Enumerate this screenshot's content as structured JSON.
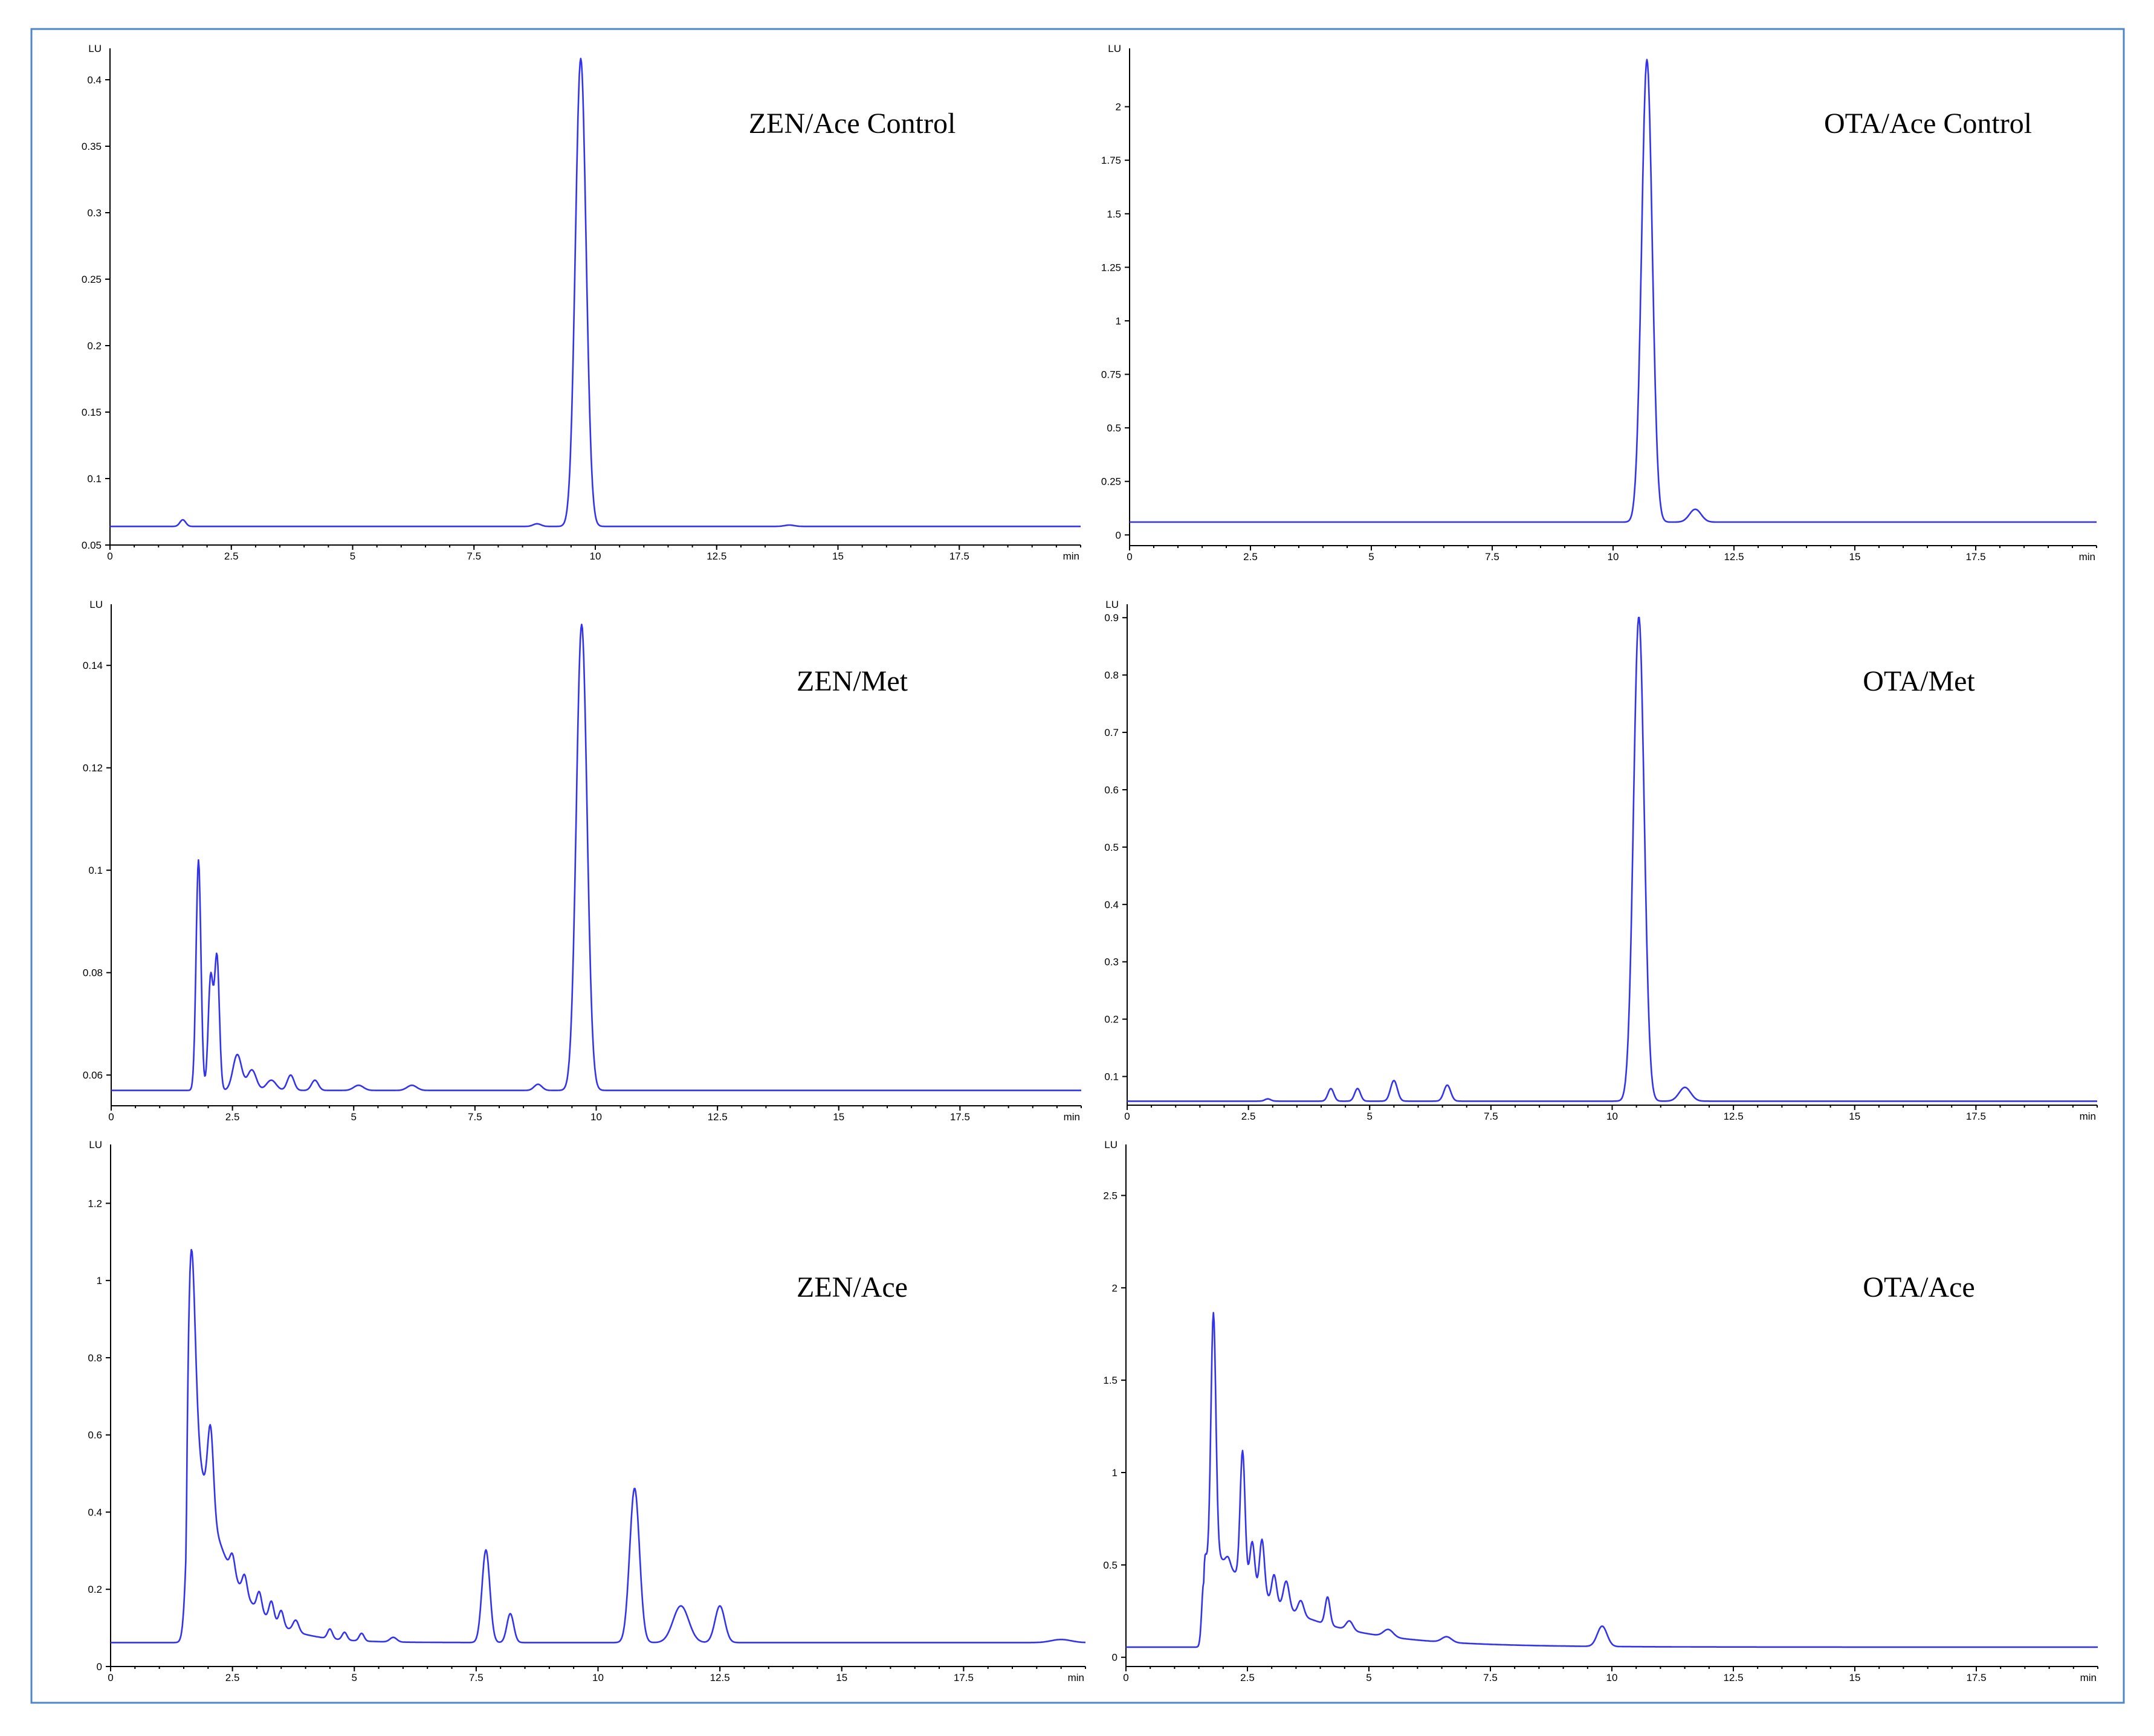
{
  "colors": {
    "frame": "#4f86c6",
    "trace": "#3333ee",
    "axis": "#000000",
    "background": "#ffffff"
  },
  "chart_data": [
    {
      "type": "line",
      "title": "ZEN/Ace Control",
      "xunit": "min",
      "yunit": "LU",
      "xlim": [
        0,
        20
      ],
      "ylim": [
        0.05,
        0.42
      ],
      "xticks": [
        0,
        2.5,
        5,
        7.5,
        10,
        12.5,
        15,
        17.5
      ],
      "xtick_labels": [
        "0",
        "2.5",
        "5",
        "7.5",
        "10",
        "12.5",
        "15",
        "17.5"
      ],
      "yticks": [
        0.05,
        0.1,
        0.15,
        0.2,
        0.25,
        0.3,
        0.35,
        0.4
      ],
      "ytick_labels": [
        "0.05",
        "0.1",
        "0.15",
        "0.2",
        "0.25",
        "0.3",
        "0.35",
        "0.4"
      ],
      "grid": false,
      "series": [
        {
          "baseline": 0.064,
          "peaks": [
            [
              1.5,
              0.005,
              0.06
            ],
            [
              8.8,
              0.002,
              0.08
            ],
            [
              9.7,
              0.352,
              0.11
            ],
            [
              14,
              0.001,
              0.1
            ]
          ]
        }
      ]
    },
    {
      "type": "line",
      "title": "OTA/Ace Control",
      "xunit": "min",
      "yunit": "LU",
      "xlim": [
        0,
        20
      ],
      "ylim": [
        -0.05,
        2.25
      ],
      "xticks": [
        0,
        2.5,
        5,
        7.5,
        10,
        12.5,
        15,
        17.5
      ],
      "xtick_labels": [
        "0",
        "2.5",
        "5",
        "7.5",
        "10",
        "12.5",
        "15",
        "17.5"
      ],
      "yticks": [
        0,
        0.25,
        0.5,
        0.75,
        1,
        1.25,
        1.5,
        1.75,
        2
      ],
      "ytick_labels": [
        "0",
        "0.25",
        "0.5",
        "0.75",
        "1",
        "1.25",
        "1.5",
        "1.75",
        "2"
      ],
      "grid": false,
      "series": [
        {
          "baseline": 0.06,
          "peaks": [
            [
              10.7,
              2.16,
              0.11
            ],
            [
              11.7,
              0.06,
              0.12
            ]
          ]
        }
      ]
    },
    {
      "type": "line",
      "title": "ZEN/Met",
      "xunit": "min",
      "yunit": "LU",
      "xlim": [
        0,
        20
      ],
      "ylim": [
        0.054,
        0.151
      ],
      "xticks": [
        0,
        2.5,
        5,
        7.5,
        10,
        12.5,
        15,
        17.5
      ],
      "xtick_labels": [
        "0",
        "2.5",
        "5",
        "7.5",
        "10",
        "12.5",
        "15",
        "17.5"
      ],
      "yticks": [
        0.06,
        0.08,
        0.1,
        0.12,
        0.14
      ],
      "ytick_labels": [
        "0.06",
        "0.08",
        "0.1",
        "0.12",
        "0.14"
      ],
      "grid": false,
      "series": [
        {
          "baseline": 0.057,
          "peaks": [
            [
              1.8,
              0.045,
              0.05
            ],
            [
              2.05,
              0.022,
              0.05
            ],
            [
              2.18,
              0.026,
              0.05
            ],
            [
              2.6,
              0.007,
              0.09
            ],
            [
              2.9,
              0.004,
              0.09
            ],
            [
              3.3,
              0.002,
              0.1
            ],
            [
              3.7,
              0.003,
              0.07
            ],
            [
              4.2,
              0.002,
              0.07
            ],
            [
              5.1,
              0.001,
              0.1
            ],
            [
              6.2,
              0.001,
              0.1
            ],
            [
              8.8,
              0.0012,
              0.08
            ],
            [
              9.7,
              0.091,
              0.11
            ]
          ]
        }
      ]
    },
    {
      "type": "line",
      "title": "OTA/Met",
      "xunit": "min",
      "yunit": "LU",
      "xlim": [
        0,
        20
      ],
      "ylim": [
        0.05,
        0.915
      ],
      "xticks": [
        0,
        2.5,
        5,
        7.5,
        10,
        12.5,
        15,
        17.5
      ],
      "xtick_labels": [
        "0",
        "2.5",
        "5",
        "7.5",
        "10",
        "12.5",
        "15",
        "17.5"
      ],
      "yticks": [
        0.1,
        0.2,
        0.3,
        0.4,
        0.5,
        0.6,
        0.7,
        0.8,
        0.9
      ],
      "ytick_labels": [
        "0.1",
        "0.2",
        "0.3",
        "0.4",
        "0.5",
        "0.6",
        "0.7",
        "0.8",
        "0.9"
      ],
      "grid": false,
      "series": [
        {
          "baseline": 0.057,
          "peaks": [
            [
              2.9,
              0.004,
              0.06
            ],
            [
              4.2,
              0.022,
              0.06
            ],
            [
              4.75,
              0.022,
              0.06
            ],
            [
              5.5,
              0.036,
              0.07
            ],
            [
              6.6,
              0.028,
              0.07
            ],
            [
              10.55,
              0.845,
              0.11
            ],
            [
              11.5,
              0.024,
              0.12
            ]
          ]
        }
      ]
    },
    {
      "type": "line",
      "title": "ZEN/Ace",
      "xunit": "min",
      "yunit": "LU",
      "xlim": [
        0,
        20
      ],
      "ylim": [
        0,
        1.34
      ],
      "xticks": [
        0,
        2.5,
        5,
        7.5,
        10,
        12.5,
        15,
        17.5
      ],
      "xtick_labels": [
        "0",
        "2.5",
        "5",
        "7.5",
        "10",
        "12.5",
        "15",
        "17.5"
      ],
      "yticks": [
        0,
        0.2,
        0.4,
        0.6,
        0.8,
        1,
        1.2
      ],
      "ytick_labels": [
        "0",
        "0.2",
        "0.4",
        "0.6",
        "0.8",
        "1",
        "1.2"
      ],
      "grid": false,
      "series": [
        {
          "baseline": 0.062,
          "tail": [
            1.55,
            0.7,
            0.7
          ],
          "peaks": [
            [
              1.65,
              0.52,
              0.08
            ],
            [
              2.05,
              0.22,
              0.06
            ],
            [
              2.5,
              0.05,
              0.05
            ],
            [
              2.75,
              0.05,
              0.05
            ],
            [
              3.05,
              0.05,
              0.05
            ],
            [
              3.3,
              0.05,
              0.05
            ],
            [
              3.5,
              0.04,
              0.05
            ],
            [
              3.8,
              0.03,
              0.06
            ],
            [
              4.5,
              0.025,
              0.05
            ],
            [
              4.8,
              0.02,
              0.05
            ],
            [
              5.15,
              0.02,
              0.05
            ],
            [
              5.8,
              0.012,
              0.07
            ],
            [
              7.7,
              0.24,
              0.08
            ],
            [
              8.2,
              0.075,
              0.07
            ],
            [
              10.75,
              0.4,
              0.1
            ],
            [
              11.7,
              0.095,
              0.16
            ],
            [
              12.5,
              0.095,
              0.1
            ],
            [
              19.5,
              0.008,
              0.2
            ]
          ]
        }
      ]
    },
    {
      "type": "line",
      "title": "OTA/Ace",
      "xunit": "min",
      "yunit": "LU",
      "xlim": [
        0,
        20
      ],
      "ylim": [
        -0.05,
        2.75
      ],
      "xticks": [
        0,
        2.5,
        5,
        7.5,
        10,
        12.5,
        15,
        17.5
      ],
      "xtick_labels": [
        "0",
        "2.5",
        "5",
        "7.5",
        "10",
        "12.5",
        "15",
        "17.5"
      ],
      "yticks": [
        0,
        0.5,
        1,
        1.5,
        2,
        2.5
      ],
      "ytick_labels": [
        "0",
        "0.5",
        "1",
        "1.5",
        "2",
        "2.5"
      ],
      "grid": false,
      "series": [
        {
          "baseline": 0.055,
          "tail": [
            1.6,
            0.6,
            1.6
          ],
          "peaks": [
            [
              1.6,
              0.35,
              0.04
            ],
            [
              1.8,
              1.3,
              0.05
            ],
            [
              2.1,
              0.05,
              0.05
            ],
            [
              2.4,
              0.7,
              0.05
            ],
            [
              2.6,
              0.25,
              0.05
            ],
            [
              2.8,
              0.3,
              0.05
            ],
            [
              3.05,
              0.15,
              0.05
            ],
            [
              3.3,
              0.15,
              0.06
            ],
            [
              3.6,
              0.08,
              0.06
            ],
            [
              4.15,
              0.15,
              0.05
            ],
            [
              4.6,
              0.05,
              0.07
            ],
            [
              5.4,
              0.04,
              0.1
            ],
            [
              6.6,
              0.03,
              0.1
            ],
            [
              9.8,
              0.11,
              0.1
            ]
          ]
        }
      ]
    }
  ]
}
